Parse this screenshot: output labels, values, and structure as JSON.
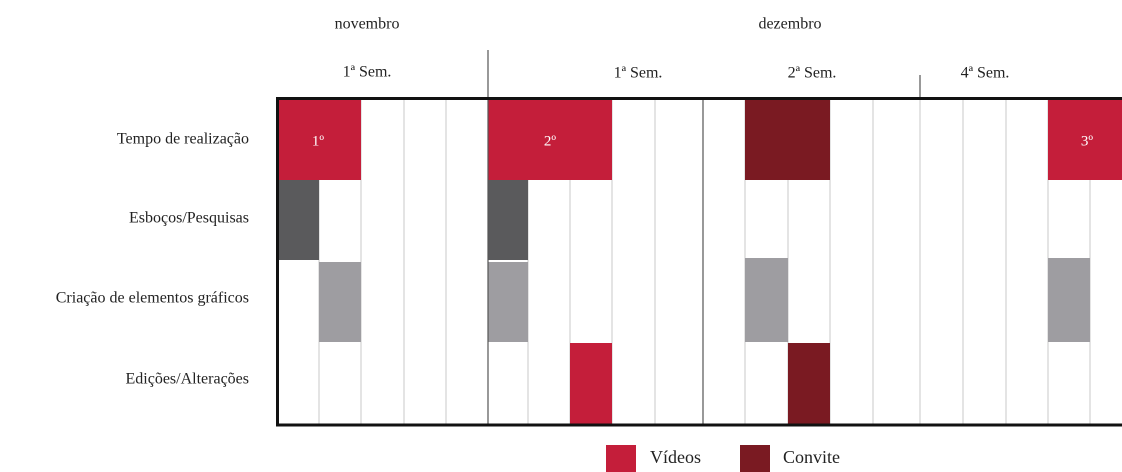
{
  "months": [
    "novembro",
    "dezembro"
  ],
  "weeks": [
    "1ª Sem.",
    "1ª Sem.",
    "2ª Sem.",
    "4ª Sem."
  ],
  "rows": [
    "Tempo de realização",
    "Esboços/Pesquisas",
    "Criação de elementos gráficos",
    "Edições/Alterações"
  ],
  "blocks": [
    "1º",
    "2º",
    "3º"
  ],
  "legend": [
    "Vídeos",
    "Convite"
  ]
}
